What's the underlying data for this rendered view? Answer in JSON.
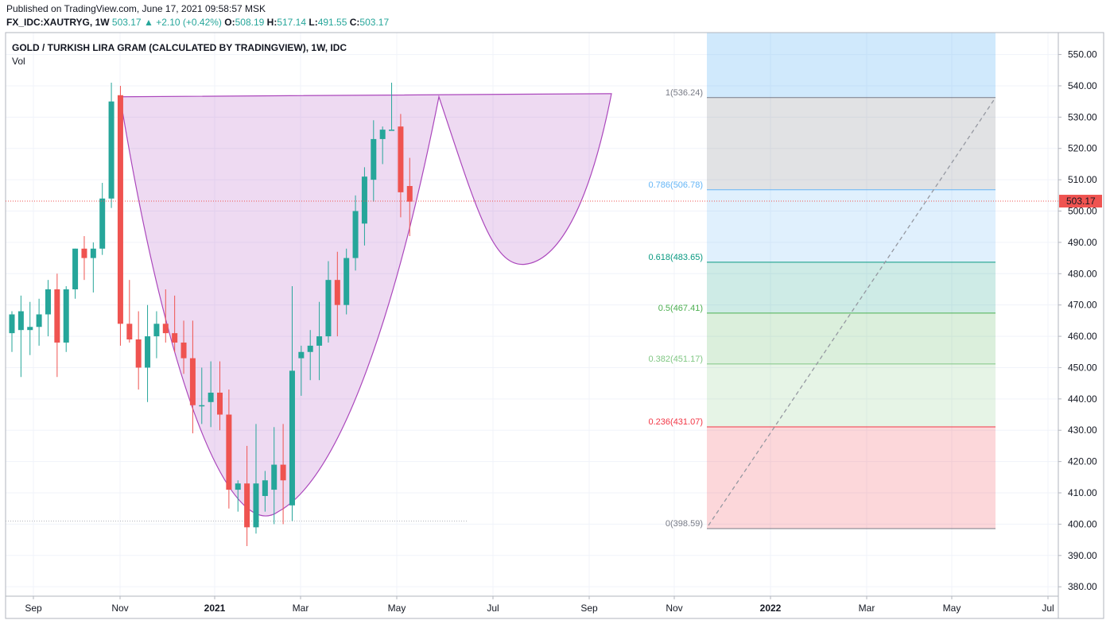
{
  "header": {
    "published": "Published on TradingView.com, June 17, 2021 09:58:57 MSK",
    "symbol": "FX_IDC:XAUTRYG, 1W",
    "last": "503.17",
    "change": "+2.10 (+0.42%)",
    "open_label": "O:",
    "open": "508.19",
    "high_label": "H:",
    "high": "517.14",
    "low_label": "L:",
    "low": "491.55",
    "close_label": "C:",
    "close": "503.17"
  },
  "chart_data": {
    "type": "candlestick",
    "title": "GOLD / TURKISH LIRA GRAM (CALCULATED BY TRADINGVIEW), 1W, IDC",
    "indicator_label": "Vol",
    "ylim": [
      377,
      557
    ],
    "y_ticks": [
      380,
      390,
      400,
      410,
      420,
      430,
      440,
      450,
      460,
      470,
      480,
      490,
      500,
      510,
      520,
      530,
      540,
      550
    ],
    "x_ticks": [
      {
        "label": "Sep",
        "bold": false
      },
      {
        "label": "Nov",
        "bold": false
      },
      {
        "label": "2021",
        "bold": true
      },
      {
        "label": "Mar",
        "bold": false
      },
      {
        "label": "May",
        "bold": false
      },
      {
        "label": "Jul",
        "bold": false
      },
      {
        "label": "Sep",
        "bold": false
      },
      {
        "label": "Nov",
        "bold": false
      },
      {
        "label": "2022",
        "bold": true
      },
      {
        "label": "Mar",
        "bold": false
      },
      {
        "label": "May",
        "bold": false
      },
      {
        "label": "Jul",
        "bold": false
      }
    ],
    "last_price": 503.17,
    "last_price_label": "503.17",
    "candles": [
      {
        "o": 461,
        "h": 468,
        "l": 455,
        "c": 467
      },
      {
        "o": 462,
        "h": 473,
        "l": 447,
        "c": 468
      },
      {
        "o": 462,
        "h": 471,
        "l": 454,
        "c": 463
      },
      {
        "o": 463,
        "h": 472,
        "l": 457,
        "c": 467
      },
      {
        "o": 467,
        "h": 478,
        "l": 460,
        "c": 475
      },
      {
        "o": 475,
        "h": 480,
        "l": 447,
        "c": 458
      },
      {
        "o": 458,
        "h": 476,
        "l": 455,
        "c": 475
      },
      {
        "o": 475,
        "h": 488,
        "l": 472,
        "c": 488
      },
      {
        "o": 488,
        "h": 492,
        "l": 478,
        "c": 485
      },
      {
        "o": 485,
        "h": 490,
        "l": 474,
        "c": 488
      },
      {
        "o": 488,
        "h": 509,
        "l": 486,
        "c": 504
      },
      {
        "o": 504,
        "h": 541,
        "l": 501,
        "c": 535
      },
      {
        "o": 537,
        "h": 540,
        "l": 457,
        "c": 464
      },
      {
        "o": 464,
        "h": 478,
        "l": 458,
        "c": 459
      },
      {
        "o": 459,
        "h": 468,
        "l": 443,
        "c": 450
      },
      {
        "o": 450,
        "h": 470,
        "l": 439,
        "c": 460
      },
      {
        "o": 460,
        "h": 468,
        "l": 453,
        "c": 464
      },
      {
        "o": 464,
        "h": 475,
        "l": 458,
        "c": 461
      },
      {
        "o": 461,
        "h": 473,
        "l": 455,
        "c": 458
      },
      {
        "o": 458,
        "h": 465,
        "l": 448,
        "c": 453
      },
      {
        "o": 453,
        "h": 465,
        "l": 429,
        "c": 438
      },
      {
        "o": 438,
        "h": 450,
        "l": 432,
        "c": 438
      },
      {
        "o": 439,
        "h": 452,
        "l": 431,
        "c": 442
      },
      {
        "o": 442,
        "h": 452,
        "l": 430,
        "c": 435
      },
      {
        "o": 435,
        "h": 443,
        "l": 405,
        "c": 411
      },
      {
        "o": 411,
        "h": 414,
        "l": 404,
        "c": 413
      },
      {
        "o": 413,
        "h": 425,
        "l": 393,
        "c": 399
      },
      {
        "o": 399,
        "h": 432,
        "l": 397,
        "c": 413
      },
      {
        "o": 409,
        "h": 417,
        "l": 404,
        "c": 414
      },
      {
        "o": 411,
        "h": 431,
        "l": 400,
        "c": 419
      },
      {
        "o": 419,
        "h": 432,
        "l": 400,
        "c": 414
      },
      {
        "o": 406,
        "h": 476,
        "l": 401,
        "c": 449
      },
      {
        "o": 453,
        "h": 457,
        "l": 441,
        "c": 455
      },
      {
        "o": 455,
        "h": 462,
        "l": 446,
        "c": 457
      },
      {
        "o": 457,
        "h": 471,
        "l": 446,
        "c": 460
      },
      {
        "o": 460,
        "h": 484,
        "l": 458,
        "c": 478
      },
      {
        "o": 478,
        "h": 487,
        "l": 460,
        "c": 470
      },
      {
        "o": 470,
        "h": 488,
        "l": 467,
        "c": 485
      },
      {
        "o": 485,
        "h": 505,
        "l": 481,
        "c": 500
      },
      {
        "o": 496,
        "h": 514,
        "l": 489,
        "c": 511
      },
      {
        "o": 510,
        "h": 529,
        "l": 503,
        "c": 523
      },
      {
        "o": 523,
        "h": 527,
        "l": 515,
        "c": 526
      },
      {
        "o": 526,
        "h": 541,
        "l": 526,
        "c": 526
      },
      {
        "o": 527,
        "h": 531,
        "l": 498,
        "c": 506
      },
      {
        "o": 508,
        "h": 517,
        "l": 492,
        "c": 503
      }
    ],
    "fib_levels": [
      {
        "ratio": 1,
        "price": 536.24,
        "label": "1(536.24)",
        "color": "#787b86",
        "fill": "rgba(120,123,134,0.22)"
      },
      {
        "ratio": 0.786,
        "price": 506.78,
        "label": "0.786(506.78)",
        "color": "#64b5f6",
        "fill": "rgba(100,181,246,0.20)"
      },
      {
        "ratio": 0.618,
        "price": 483.65,
        "label": "0.618(483.65)",
        "color": "#089981",
        "fill": "rgba(8,153,129,0.20)"
      },
      {
        "ratio": 0.5,
        "price": 467.41,
        "label": "0.5(467.41)",
        "color": "#4caf50",
        "fill": "rgba(76,175,80,0.20)"
      },
      {
        "ratio": 0.382,
        "price": 451.17,
        "label": "0.382(451.17)",
        "color": "#81c784",
        "fill": "rgba(129,199,132,0.20)"
      },
      {
        "ratio": 0.236,
        "price": 431.07,
        "label": "0.236(431.07)",
        "color": "#f23645",
        "fill": "rgba(242,54,69,0.20)"
      },
      {
        "ratio": 0,
        "price": 398.59,
        "label": "0(398.59)",
        "color": "#787b86",
        "fill": null
      }
    ],
    "fib_top_fill": "rgba(100,181,246,0.30)",
    "cup_color": "#ab47bc",
    "cup_fill": "rgba(171,71,188,0.20)",
    "up_color": "#26a69a",
    "down_color": "#ef5350"
  }
}
